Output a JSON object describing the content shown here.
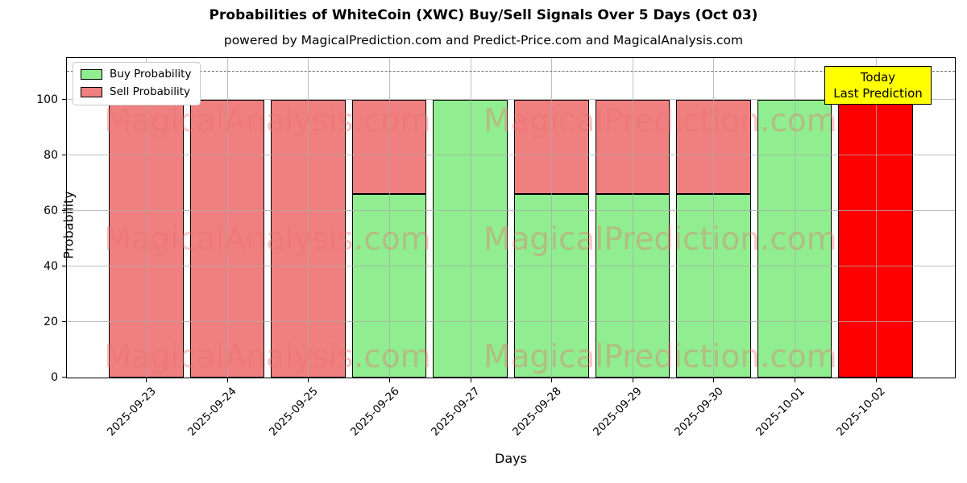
{
  "title": "Probabilities of WhiteCoin (XWC) Buy/Sell Signals Over 5 Days (Oct 03)",
  "subtitle": "powered by MagicalPrediction.com and Predict-Price.com and MagicalAnalysis.com",
  "legend": {
    "buy_label": "Buy Probability",
    "sell_label": "Sell Probability"
  },
  "annotation": {
    "line1": "Today",
    "line2": "Last Prediction",
    "bg_color": "#ffff00"
  },
  "watermarks": {
    "left": "MagicalAnalysis.com",
    "right": "MagicalPrediction.com"
  },
  "chart_data": {
    "type": "bar",
    "stacked": true,
    "title": "Probabilities of WhiteCoin (XWC) Buy/Sell Signals Over 5 Days (Oct 03)",
    "xlabel": "Days",
    "ylabel": "Probability",
    "categories": [
      "2025-09-23",
      "2025-09-24",
      "2025-09-25",
      "2025-09-26",
      "2025-09-27",
      "2025-09-28",
      "2025-09-29",
      "2025-09-30",
      "2025-10-01",
      "2025-10-02"
    ],
    "series": [
      {
        "name": "Buy Probability",
        "color": "#90EE90",
        "values": [
          0,
          0,
          0,
          66,
          100,
          66,
          66,
          66,
          100,
          0
        ]
      },
      {
        "name": "Sell Probability",
        "color": "#F08080",
        "values": [
          100,
          100,
          100,
          34,
          0,
          34,
          34,
          34,
          0,
          100
        ]
      }
    ],
    "bar_color_overrides": [
      {
        "category_index": 9,
        "series": "Sell Probability",
        "color": "#FF0000"
      }
    ],
    "ylim": [
      0,
      115
    ],
    "yticks": [
      0,
      20,
      40,
      60,
      80,
      100
    ],
    "dashed_line_y": 110,
    "grid": true,
    "legend_position": "upper left",
    "today_annotation_category": "2025-10-02"
  }
}
